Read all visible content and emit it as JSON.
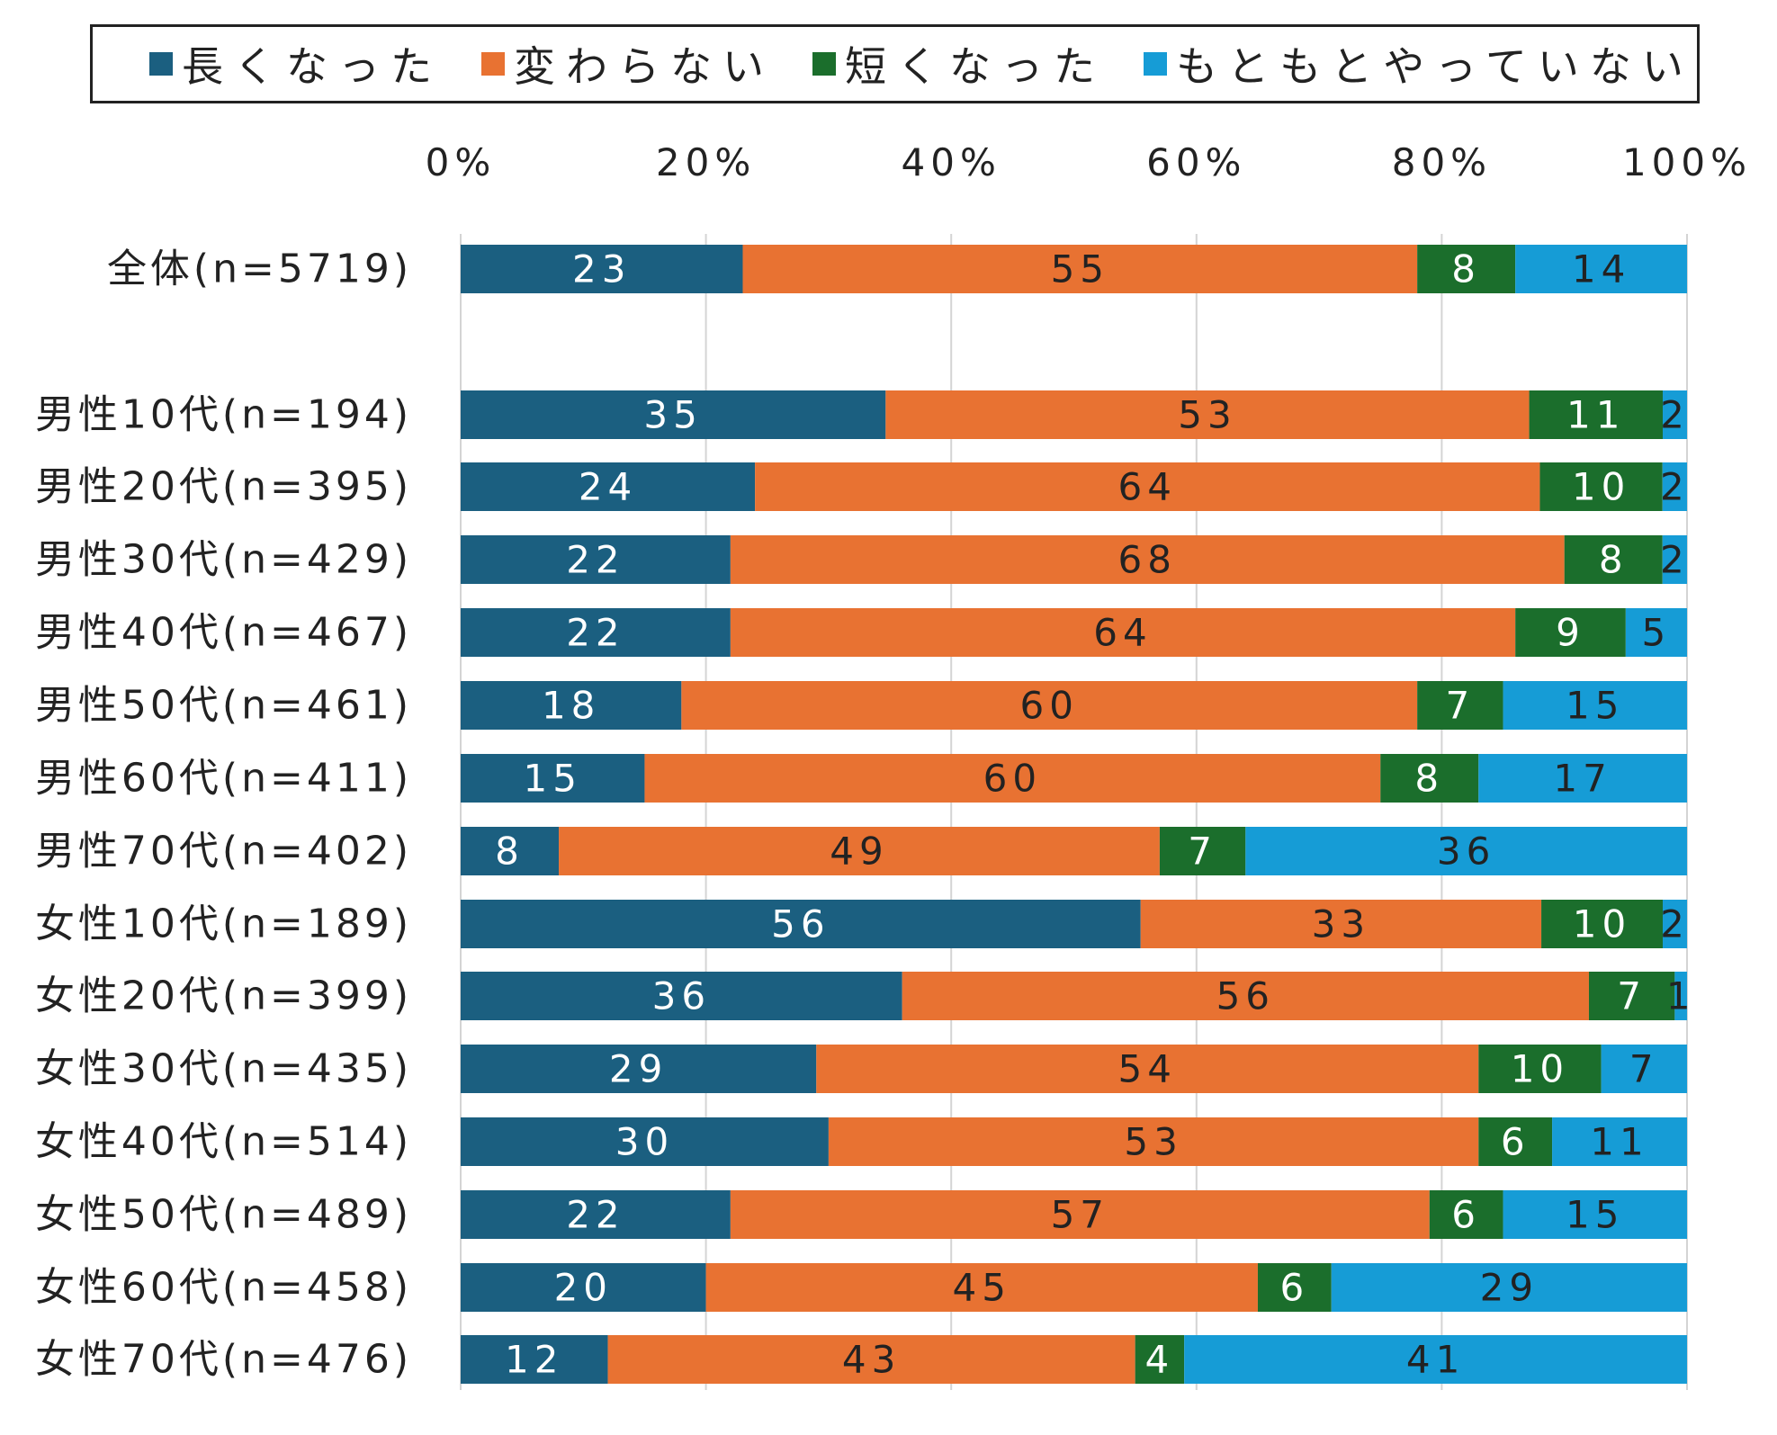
{
  "chart_data": {
    "type": "bar",
    "orientation": "horizontal",
    "stacked": true,
    "percent": true,
    "xlim": [
      0,
      100
    ],
    "x_ticks": [
      "0%",
      "20%",
      "40%",
      "60%",
      "80%",
      "100%"
    ],
    "grid": "vertical",
    "legend_position": "top",
    "categories": [
      "全体(n=5719)",
      "男性10代(n=194)",
      "男性20代(n=395)",
      "男性30代(n=429)",
      "男性40代(n=467)",
      "男性50代(n=461)",
      "男性60代(n=411)",
      "男性70代(n=402)",
      "女性10代(n=189)",
      "女性20代(n=399)",
      "女性30代(n=435)",
      "女性40代(n=514)",
      "女性50代(n=489)",
      "女性60代(n=458)",
      "女性70代(n=476)"
    ],
    "series": [
      {
        "name": "長くなった",
        "color": "#1b5f80",
        "values": [
          23,
          35,
          24,
          22,
          22,
          18,
          15,
          8,
          56,
          36,
          29,
          30,
          22,
          20,
          12
        ]
      },
      {
        "name": "変わらない",
        "color": "#e87232",
        "values": [
          55,
          53,
          64,
          68,
          64,
          60,
          60,
          49,
          33,
          56,
          54,
          53,
          57,
          45,
          43
        ]
      },
      {
        "name": "短くなった",
        "color": "#1b6e2c",
        "values": [
          8,
          11,
          10,
          8,
          9,
          7,
          8,
          7,
          10,
          7,
          10,
          6,
          6,
          6,
          4
        ]
      },
      {
        "name": "もともとやっていない",
        "color": "#169cd6",
        "values": [
          14,
          2,
          2,
          2,
          5,
          15,
          17,
          36,
          2,
          1,
          7,
          11,
          15,
          29,
          41
        ]
      }
    ]
  }
}
